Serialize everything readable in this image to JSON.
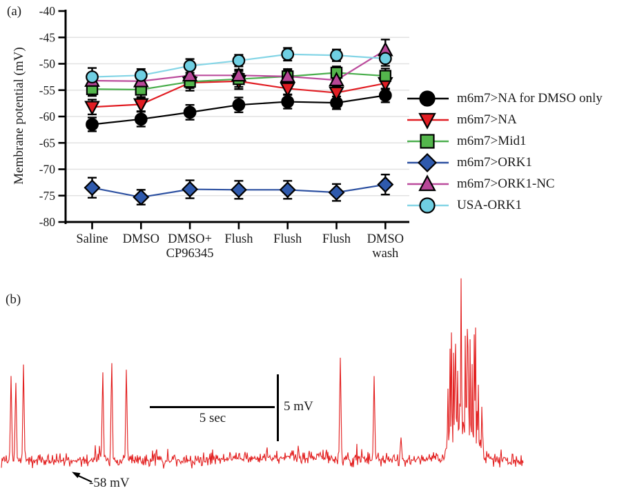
{
  "figure": {
    "panel_a_label": "(a)",
    "panel_b_label": "(b)"
  },
  "chart_data": [
    {
      "type": "line",
      "panel": "a",
      "title": "",
      "xlabel": "",
      "ylabel": "Membrane potential (mV)",
      "ylim": [
        -80,
        -40
      ],
      "yticks": [
        -40,
        -45,
        -50,
        -55,
        -60,
        -65,
        -70,
        -75,
        -80
      ],
      "grid": true,
      "legend_position": "right",
      "categories": [
        "Saline",
        "DMSO",
        "DMSO+CP96345",
        "Flush",
        "Flush",
        "Flush",
        "DMSO wash"
      ],
      "category_lines": [
        [
          "Saline"
        ],
        [
          "DMSO"
        ],
        [
          "DMSO+",
          "CP96345"
        ],
        [
          "Flush"
        ],
        [
          "Flush"
        ],
        [
          "Flush"
        ],
        [
          "DMSO",
          "wash"
        ]
      ],
      "series": [
        {
          "name": "m6m7>NA for DMSO only",
          "marker": "circle",
          "color": "#000000",
          "fill": "#000000",
          "values": [
            -61.5,
            -60.5,
            -59.2,
            -57.8,
            -57.2,
            -57.4,
            -56.0
          ],
          "errors": [
            1.3,
            1.4,
            1.4,
            1.4,
            1.3,
            1.2,
            1.3
          ]
        },
        {
          "name": "m6m7>NA",
          "marker": "triangle-down",
          "color": "#e11d23",
          "fill": "#e11d23",
          "values": [
            -58.2,
            -57.7,
            -53.6,
            -53.3,
            -54.7,
            -55.5,
            -53.7
          ],
          "errors": [
            1.4,
            1.3,
            1.5,
            1.5,
            1.1,
            1.4,
            1.1
          ]
        },
        {
          "name": "m6m7>Mid1",
          "marker": "square",
          "color": "#4aae4d",
          "fill": "#54b64c",
          "values": [
            -54.8,
            -54.9,
            -53.4,
            -52.9,
            -52.4,
            -51.7,
            -52.3
          ],
          "errors": [
            1.3,
            1.4,
            1.2,
            1.5,
            1.4,
            1.2,
            1.4
          ]
        },
        {
          "name": "m6m7>ORK1",
          "marker": "diamond",
          "color": "#2b4fa0",
          "fill": "#2f5aad",
          "values": [
            -73.5,
            -75.3,
            -73.8,
            -73.9,
            -73.9,
            -74.4,
            -72.9
          ],
          "errors": [
            1.9,
            1.4,
            1.7,
            1.7,
            1.7,
            1.6,
            1.9
          ]
        },
        {
          "name": "m6m7>ORK1-NC",
          "marker": "triangle-up",
          "color": "#bb4b9c",
          "fill": "#b84798",
          "values": [
            -53.2,
            -53.3,
            -52.2,
            -52.2,
            -52.4,
            -53.1,
            -47.4
          ],
          "errors": [
            1.2,
            1.2,
            1.3,
            1.1,
            1.2,
            1.2,
            2.0
          ]
        },
        {
          "name": "USA-ORK1",
          "marker": "circle",
          "color": "#84d5e6",
          "fill": "#6fcfe2",
          "values": [
            -52.5,
            -52.2,
            -50.4,
            -49.4,
            -48.2,
            -48.4,
            -49.0
          ],
          "errors": [
            1.7,
            1.2,
            1.3,
            1.1,
            1.2,
            1.1,
            1.4
          ]
        }
      ]
    },
    {
      "type": "line",
      "panel": "b",
      "subtype": "intracellular-voltage-trace",
      "color": "#e32222",
      "baseline_mV": -58,
      "baseline_label": "-58 mV",
      "scalebar_time": "5 sec",
      "scalebar_voltage": "5 mV",
      "duration_sec": 21,
      "spikes": [
        {
          "t_sec": 0.39,
          "amp_mV": 6.6
        },
        {
          "t_sec": 0.58,
          "amp_mV": 6.3
        },
        {
          "t_sec": 0.89,
          "amp_mV": 7.5
        },
        {
          "t_sec": 4.08,
          "amp_mV": 7.1
        },
        {
          "t_sec": 4.44,
          "amp_mV": 8.0
        },
        {
          "t_sec": 5.03,
          "amp_mV": 7.2
        },
        {
          "t_sec": 13.64,
          "amp_mV": 7.9
        },
        {
          "t_sec": 15.0,
          "amp_mV": 6.4
        },
        {
          "t_sec": 16.08,
          "amp_mV": 1.8
        }
      ],
      "burst": {
        "start_sec": 17.83,
        "end_sec": 19.42,
        "peak_mV": 12.8,
        "plateau_mV": 1.4
      }
    }
  ]
}
